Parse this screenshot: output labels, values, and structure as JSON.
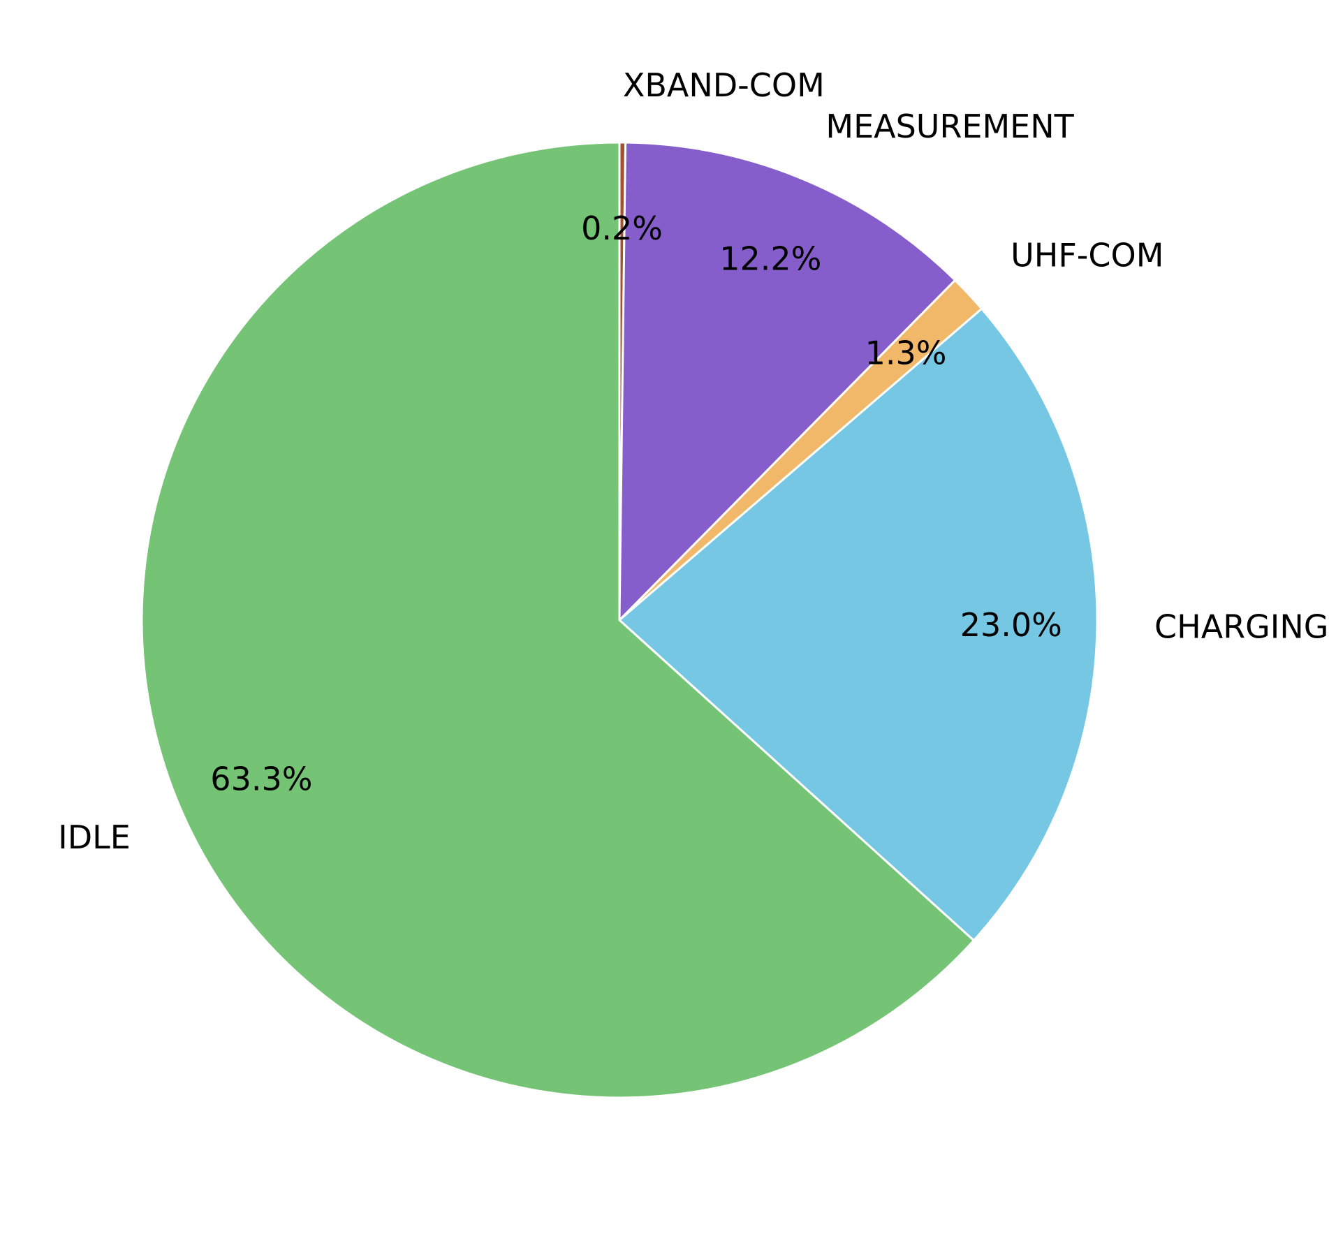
{
  "chart_data": {
    "type": "pie",
    "title": "",
    "start_angle_deg": 90,
    "direction": "clockwise",
    "slices": [
      {
        "label": "XBAND-COM",
        "percent": 0.2,
        "display": "0.2%",
        "color": "#a0522d"
      },
      {
        "label": "MEASUREMENT",
        "percent": 12.2,
        "display": "12.2%",
        "color": "#855ecb"
      },
      {
        "label": "UHF-COM",
        "percent": 1.3,
        "display": "1.3%",
        "color": "#f0b868"
      },
      {
        "label": "CHARGING",
        "percent": 23.0,
        "display": "23.0%",
        "color": "#76c7e3"
      },
      {
        "label": "IDLE",
        "percent": 63.3,
        "display": "63.3%",
        "color": "#75c375"
      }
    ]
  }
}
